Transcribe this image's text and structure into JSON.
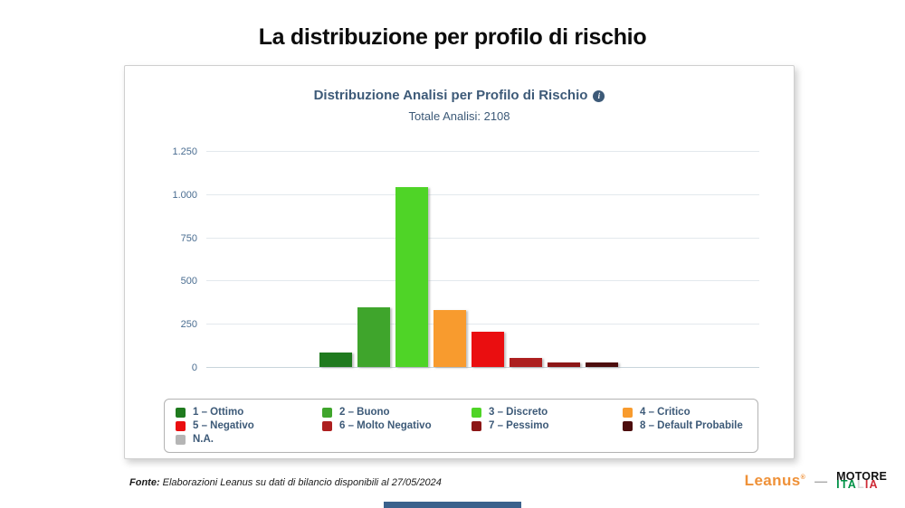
{
  "page": {
    "title": "La distribuzione per profilo di rischio",
    "bottom_accent_color": "#3a618c"
  },
  "chart_data": {
    "type": "bar",
    "title": "Distribuzione Analisi per Profilo di Rischio",
    "subtitle": "Totale Analisi: 2108",
    "total_analisi": 2108,
    "info_icon_glyph": "i",
    "categories": [
      "1 – Ottimo",
      "2 – Buono",
      "3 – Discreto",
      "4 – Critico",
      "5 – Negativo",
      "6 – Molto Negativo",
      "7 – Pessimo",
      "8 – Default Probabile",
      "N.A."
    ],
    "values": [
      85,
      345,
      1040,
      330,
      205,
      50,
      28,
      25,
      0
    ],
    "colors": [
      "#1f7a1e",
      "#3fa52c",
      "#4fd427",
      "#f89b2e",
      "#ea0e10",
      "#ad1f1f",
      "#8c1616",
      "#4c0d0d",
      "#b5b5b5"
    ],
    "xlabel": "",
    "ylabel": "",
    "ylim": [
      0,
      1250
    ],
    "yticks": [
      0,
      250,
      500,
      750,
      1000,
      1250
    ],
    "ytick_labels": [
      "0",
      "250",
      "500",
      "750",
      "1.000",
      "1.250"
    ],
    "grid": true,
    "legend_position": "bottom-box"
  },
  "footer": {
    "source_label": "Fonte:",
    "source_text": "Elaborazioni Leanus su dati di bilancio disponibili al 27/05/2024",
    "logo_leanus": "Leanus",
    "logo_leanus_mark": "®",
    "logo_separator": "—",
    "logo_motore_line1": "MOTORE",
    "logo_motore_line2": "ITALIA",
    "logo_motore_italia_colors": [
      "#009246",
      "#009246",
      "#009246",
      "#d9d9d9",
      "#ce2b37",
      "#ce2b37"
    ]
  }
}
